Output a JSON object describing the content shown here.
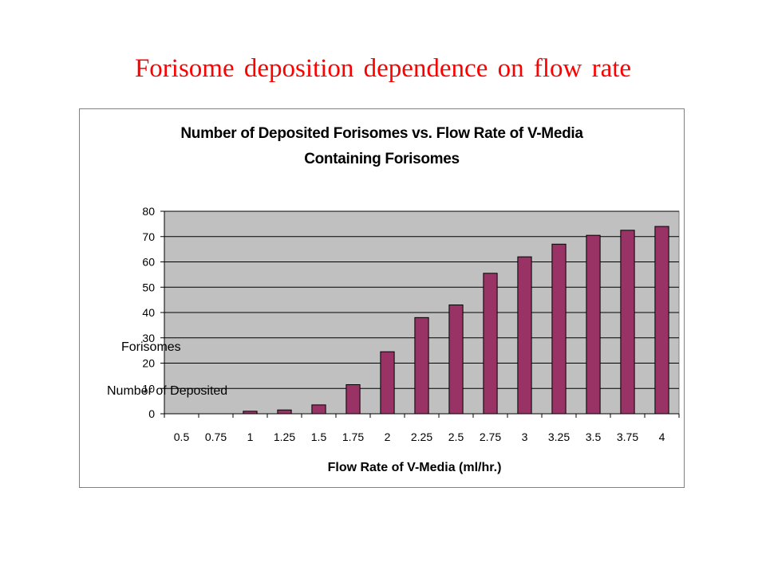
{
  "slide": {
    "title": "Forisome deposition dependence on flow rate"
  },
  "chart_data": {
    "type": "bar",
    "title_line1": "Number of Deposited Forisomes vs. Flow Rate of V-Media",
    "title_line2": "Containing Forisomes",
    "xlabel": "Flow Rate of V-Media (ml/hr.)",
    "ylabel_line1": "Number of Deposited",
    "ylabel_line2": "Forisomes",
    "categories": [
      "0.5",
      "0.75",
      "1",
      "1.25",
      "1.5",
      "1.75",
      "2",
      "2.25",
      "2.5",
      "2.75",
      "3",
      "3.25",
      "3.5",
      "3.75",
      "4"
    ],
    "values": [
      0,
      0,
      1,
      1.5,
      3.5,
      11.5,
      24.5,
      38,
      43,
      55.5,
      62,
      67,
      70.5,
      72.5,
      74
    ],
    "ylim": [
      0,
      80
    ],
    "yticks": [
      0,
      10,
      20,
      30,
      40,
      50,
      60,
      70,
      80
    ],
    "grid": true,
    "legend": "none",
    "colors": {
      "bar": "#993366",
      "plot_background": "#c0c0c0",
      "gridline": "#000000",
      "title": "#ff0000"
    }
  }
}
